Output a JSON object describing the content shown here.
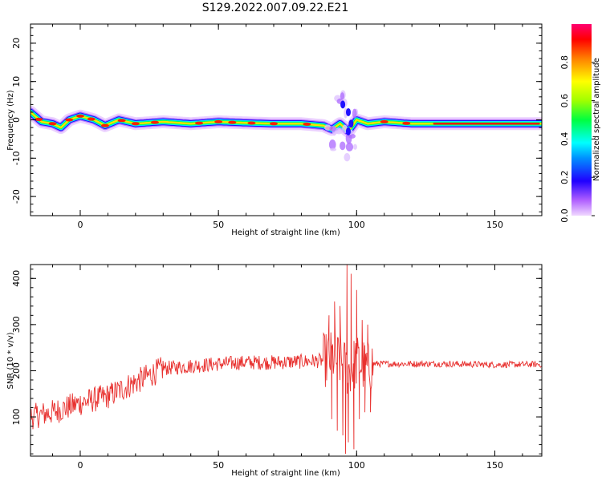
{
  "title": "S129.2022.007.09.22.E21",
  "chart_data": [
    {
      "type": "heatmap",
      "title": "S129.2022.007.09.22.E21",
      "xlabel": "Height of straight line (km)",
      "ylabel": "Frequency (Hz)",
      "xlim": [
        -18,
        167
      ],
      "ylim": [
        -25,
        25
      ],
      "xticks": [
        "0",
        "50",
        "100",
        "150"
      ],
      "xtick_values": [
        0,
        50,
        100,
        150
      ],
      "yticks": [
        "20",
        "10",
        "0",
        "-10",
        "-20"
      ],
      "ytick_values": [
        20,
        10,
        0,
        -10,
        -20
      ],
      "colorbar": {
        "label": "Normalized spectral amplitude",
        "range": [
          0,
          1
        ],
        "ticks": [
          "0.0",
          "0.2",
          "0.4",
          "0.6",
          "0.8"
        ],
        "tick_values": [
          0.0,
          0.2,
          0.4,
          0.6,
          0.8
        ],
        "colormap": "hsv-reversed (purple-blue-cyan-green-yellow-red)"
      },
      "ridge": {
        "x": [
          -18,
          -14,
          -10,
          -7,
          -4,
          0,
          5,
          9,
          14,
          20,
          30,
          40,
          50,
          60,
          70,
          80,
          88,
          91,
          94,
          97,
          100,
          104,
          110,
          120,
          135,
          150,
          167
        ],
        "freq": [
          2,
          -0.5,
          -1,
          -2,
          0,
          1,
          0,
          -1.5,
          0,
          -1,
          -0.5,
          -1,
          -0.5,
          -0.8,
          -1,
          -1,
          -1.5,
          -2.5,
          -1,
          -3,
          0,
          -1,
          -0.5,
          -1,
          -1,
          -1,
          -1
        ]
      },
      "burst_region": {
        "x_range": [
          88,
          102
        ],
        "freq_range": [
          -10,
          7
        ]
      }
    },
    {
      "type": "line",
      "xlabel": "Height of straight line (km)",
      "ylabel": "SNR (10 * v/v)",
      "xlim": [
        -18,
        167
      ],
      "ylim": [
        15,
        430
      ],
      "xticks": [
        "0",
        "50",
        "100",
        "150"
      ],
      "xtick_values": [
        0,
        50,
        100,
        150
      ],
      "yticks": [
        "100",
        "200",
        "300",
        "400"
      ],
      "ytick_values": [
        100,
        200,
        300,
        400
      ],
      "color": "#e8312f",
      "trend": {
        "x": [
          -18,
          -10,
          0,
          10,
          20,
          30,
          40,
          50,
          60,
          70,
          80,
          88,
          92,
          95,
          97,
          100,
          104,
          106,
          110,
          130,
          150,
          167
        ],
        "y": [
          100,
          110,
          130,
          145,
          175,
          205,
          210,
          215,
          218,
          218,
          220,
          222,
          230,
          215,
          200,
          220,
          205,
          215,
          215,
          215,
          213,
          214
        ]
      },
      "spikes": [
        {
          "x": 90,
          "y": 320
        },
        {
          "x": 91,
          "y": 95
        },
        {
          "x": 92,
          "y": 350
        },
        {
          "x": 93,
          "y": 70
        },
        {
          "x": 94,
          "y": 340
        },
        {
          "x": 95,
          "y": 60
        },
        {
          "x": 96,
          "y": 20
        },
        {
          "x": 96.5,
          "y": 430
        },
        {
          "x": 97,
          "y": 45
        },
        {
          "x": 98,
          "y": 410
        },
        {
          "x": 99,
          "y": 30
        },
        {
          "x": 100,
          "y": 375
        },
        {
          "x": 101,
          "y": 95
        },
        {
          "x": 102,
          "y": 310
        },
        {
          "x": 103,
          "y": 110
        },
        {
          "x": 104,
          "y": 300
        },
        {
          "x": 105,
          "y": 110
        }
      ]
    }
  ]
}
